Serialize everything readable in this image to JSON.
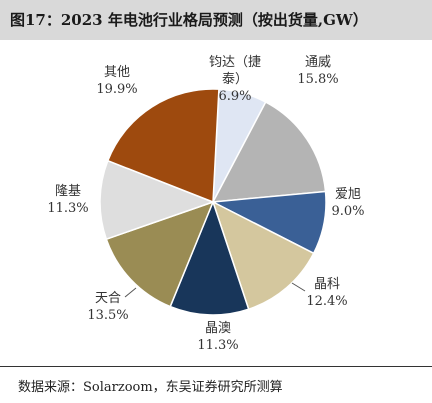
{
  "header": {
    "title": "图17：2023 年电池行业格局预测（按出货量,GW）"
  },
  "footer": {
    "source": "数据来源：Solarzoom，东吴证券研究所测算"
  },
  "chart_data": {
    "type": "pie",
    "title": "图17：2023 年电池行业格局预测（按出货量,GW）",
    "slices": [
      {
        "name_lines": [
          "钧达（捷",
          "泰）"
        ],
        "value_label": "6.9%",
        "value": 6.9,
        "color": "#dfe6f3"
      },
      {
        "name_lines": [
          "通威"
        ],
        "value_label": "15.8%",
        "value": 15.8,
        "color": "#b4b4b4"
      },
      {
        "name_lines": [
          "爱旭"
        ],
        "value_label": "9.0%",
        "value": 9.0,
        "color": "#3a6096"
      },
      {
        "name_lines": [
          "晶科"
        ],
        "value_label": "12.4%",
        "value": 12.4,
        "color": "#d4c79e"
      },
      {
        "name_lines": [
          "晶澳"
        ],
        "value_label": "11.3%",
        "value": 11.3,
        "color": "#18365a"
      },
      {
        "name_lines": [
          "天合"
        ],
        "value_label": "13.5%",
        "value": 13.5,
        "color": "#9a8c54"
      },
      {
        "name_lines": [
          "隆基"
        ],
        "value_label": "11.3%",
        "value": 11.3,
        "color": "#dedede"
      },
      {
        "name_lines": [
          "其他"
        ],
        "value_label": "19.9%",
        "value": 19.9,
        "color": "#9e4a0e"
      }
    ]
  }
}
